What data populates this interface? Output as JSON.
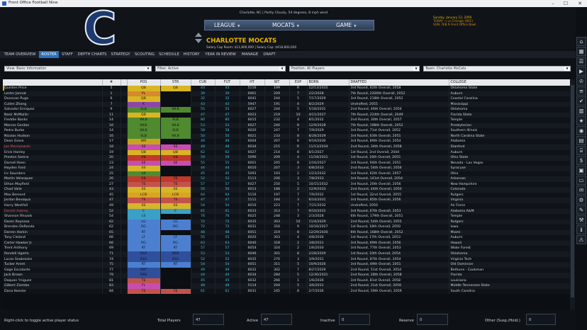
{
  "window": {
    "title": "Front Office Football Nine"
  },
  "header": {
    "team_letter": "C",
    "location": "Charlotte, NC  |  Partly Cloudy, 54 degrees, 8 mph wind",
    "nav": [
      {
        "label": "LEAGUE"
      },
      {
        "label": "MOCATS"
      },
      {
        "label": "GAME"
      }
    ],
    "team_name": "CHARLOTTE MOCATS",
    "cap": "Salary Cap Room: $11,800,000  |  Salary Cap: $418,800,000",
    "date_line": "Sunday, January 12, 2059",
    "today_line": "TODAY  →  vs Chicago (W/C)",
    "sun_line": "SUN, FEB 9   Front Office Bowl"
  },
  "tabs": [
    {
      "label": "TEAM OVERVIEW"
    },
    {
      "label": "ROSTER"
    },
    {
      "label": "STAFF"
    },
    {
      "label": "DEPTH CHARTS"
    },
    {
      "label": "STRATEGY"
    },
    {
      "label": "SCOUTING"
    },
    {
      "label": "SCHEDULE"
    },
    {
      "label": "HISTORY"
    },
    {
      "label": "YEAR IN REVIEW"
    },
    {
      "label": "MANAGE"
    },
    {
      "label": "DRAFT"
    }
  ],
  "filters": {
    "view": "View: Basic Information",
    "filter": "Filter: Active",
    "position": "Position: All Players",
    "team": "Team: Charlotte MoCats"
  },
  "table": {
    "columns": [
      "",
      "#",
      "",
      "POS",
      "STR",
      "CUR",
      "FUT",
      "HT",
      "WT",
      "EXP",
      "BORN",
      "DRAFTED",
      "COLLEGE"
    ],
    "rows": [
      {
        "name": "Quinten Price",
        "num": "5",
        "pos": "QB",
        "str": "QB",
        "cur": "43",
        "fut": "43",
        "ht": "5116",
        "wt": "199",
        "exp": "R",
        "born": "12/13/2035",
        "drafted": "3rd Round, 62th Overall, 2058",
        "college": "Oklahoma State"
      },
      {
        "name": "Lester Jannat",
        "num": "1",
        "pos": "PL",
        "str": "",
        "cur": "39",
        "fut": "39",
        "ht": "6061",
        "wt": "209",
        "exp": "7",
        "born": "2/2/2028",
        "drafted": "7th Round, 2200th Overall, 2052",
        "college": "Auburn"
      },
      {
        "name": "Donovan Puga",
        "num": "6",
        "pos": "QB",
        "str": "",
        "cur": "32",
        "fut": "32",
        "ht": "6041",
        "wt": "244",
        "exp": "5",
        "born": "7/17/2029",
        "drafted": "3rd Round, 218th Overall, 2052",
        "college": "Coastal Carolina"
      },
      {
        "name": "Cullen Zhang",
        "num": "7",
        "pos": "K",
        "str": "",
        "cur": "43",
        "fut": "43",
        "ht": "5947",
        "wt": "191",
        "exp": "4",
        "born": "8/2/2029",
        "drafted": "Undrafted, 2055",
        "college": "Mississippi"
      },
      {
        "name": "Salvador Enriquez",
        "num": "9",
        "pos": "SLB",
        "str": "WLB",
        "cur": "55",
        "fut": "55",
        "ht": "6027",
        "wt": "244",
        "exp": "5",
        "born": "5/18/2031",
        "drafted": "2nd Round, 46th Overall, 2054",
        "college": "Oklahoma"
      },
      {
        "name": "Nasir McMullin",
        "num": "11",
        "pos": "QB",
        "str": "",
        "cur": "47",
        "fut": "47",
        "ht": "6023",
        "wt": "219",
        "exp": "10",
        "born": "4/11/2027",
        "drafted": "7th Round, 224th Overall, 2049",
        "college": "Florida State"
      },
      {
        "name": "Freddie Banks",
        "num": "14",
        "pos": "WLB",
        "str": "SLB",
        "cur": "80",
        "fut": "80",
        "ht": "6015",
        "wt": "232",
        "exp": "4",
        "born": "8/1/2032",
        "drafted": "2nd Round, 30th Overall, 2057",
        "college": "Temple"
      },
      {
        "name": "Marcos Gordon",
        "num": "16",
        "pos": "MLB",
        "str": "WLB",
        "cur": "53",
        "fut": "53",
        "ht": "6027",
        "wt": "240",
        "exp": "8",
        "born": "12/9/2028",
        "drafted": "7th Round, 198th Overall, 2052",
        "college": "Presbyterian"
      },
      {
        "name": "Pedro Burke",
        "num": "14",
        "pos": "WLB",
        "str": "SLB",
        "cur": "58",
        "fut": "58",
        "ht": "6020",
        "wt": "247",
        "exp": "7",
        "born": "7/9/2029",
        "drafted": "3rd Round, 71st Overall, 2052",
        "college": "Southern Illinois"
      },
      {
        "name": "Nicolas Hudson",
        "num": "16",
        "pos": "SLB",
        "str": "WLB",
        "cur": "50",
        "fut": "50",
        "ht": "6021",
        "wt": "233",
        "exp": "8",
        "born": "8/28/2029",
        "drafted": "3rd Round, 63th Overall, 2051",
        "college": "North Carolina State"
      },
      {
        "name": "Deon Grose",
        "num": "17",
        "pos": "WR",
        "str": "",
        "cur": "49",
        "fut": "49",
        "ht": "6004",
        "wt": "207",
        "exp": "6",
        "born": "9/19/2030",
        "drafted": "3rd Round, 89th Overall, 2054",
        "college": "Alabama"
      },
      {
        "name": "Joe Maciejewski",
        "num": "18",
        "pos": "SE",
        "str": "SE",
        "cur": "48",
        "fut": "48",
        "ht": "6034",
        "wt": "215",
        "exp": "R",
        "born": "11/13/2034",
        "drafted": "2nd Round, 34th Overall, 2058",
        "college": "Stanford"
      },
      {
        "name": "Erick Hanley",
        "num": "19",
        "pos": "QB",
        "str": "QB",
        "cur": "62",
        "fut": "62",
        "ht": "6027",
        "wt": "214",
        "exp": "8",
        "born": "8/1/2027",
        "drafted": "1st Round, 2nd Overall, 2044",
        "college": "Auburn"
      },
      {
        "name": "Preston Samra",
        "num": "20",
        "pos": "RB",
        "str": "RB",
        "cur": "59",
        "fut": "59",
        "ht": "5090",
        "wt": "209",
        "exp": "4",
        "born": "11/18/2031",
        "drafted": "1st Round, 16th Overall, 2055",
        "college": "Ohio State"
      },
      {
        "name": "Darnell Keen",
        "num": "23",
        "pos": "SE",
        "str": "SE",
        "cur": "55",
        "fut": "55",
        "ht": "6001",
        "wt": "205",
        "exp": "8",
        "born": "2/16/2027",
        "drafted": "3rd Round, 94th Overall, 2051",
        "college": "Nevada - Las Vegas"
      },
      {
        "name": "Hayden Ford",
        "num": "24",
        "pos": "SS",
        "str": "",
        "cur": "44",
        "fut": "44",
        "ht": "6010",
        "wt": "207",
        "exp": "3",
        "born": "6/8/2033",
        "drafted": "2nd Round, 54th Overall, 2056",
        "college": "Syracuse"
      },
      {
        "name": "Irv Saunders",
        "num": "25",
        "pos": "LB",
        "str": "",
        "cur": "45",
        "fut": "45",
        "ht": "5093",
        "wt": "193",
        "exp": "2",
        "born": "1/23/2032",
        "drafted": "3rd Round, 62th Overall, 2057",
        "college": "Ohio"
      },
      {
        "name": "Martin Velasquez",
        "num": "26",
        "pos": "RB",
        "str": "FB",
        "cur": "52",
        "fut": "52",
        "ht": "5113",
        "wt": "206",
        "exp": "3",
        "born": "7/8/2033",
        "drafted": "3rd Round, 141st Overall, 2054",
        "college": "Arkansas"
      },
      {
        "name": "Ethan Mayfield",
        "num": "27",
        "pos": "TE",
        "str": "TE",
        "cur": "57",
        "fut": "57",
        "ht": "6027",
        "wt": "250",
        "exp": "5",
        "born": "10/15/2032",
        "drafted": "3rd Round, 20th Overall, 2056",
        "college": "New Hampshire"
      },
      {
        "name": "Chad Valle",
        "num": "43",
        "pos": "SS",
        "str": "SS",
        "cur": "56",
        "fut": "56",
        "ht": "6013",
        "wt": "188",
        "exp": "2",
        "born": "12/9/2033",
        "drafted": "2nd Round, 44th Overall, 2050",
        "college": "Colorado"
      },
      {
        "name": "Max Bement",
        "num": "45",
        "pos": "LCB",
        "str": "LCB",
        "cur": "64",
        "fut": "64",
        "ht": "5116",
        "wt": "197",
        "exp": "7",
        "born": "7/9/2032",
        "drafted": "1st Round, 32nd Overall, 2055",
        "college": "Rutgers"
      },
      {
        "name": "Jordan Bevaqua",
        "num": "47",
        "pos": "TE",
        "str": "TE",
        "cur": "47",
        "fut": "47",
        "ht": "5111",
        "wt": "184",
        "exp": "3",
        "born": "6/14/2031",
        "drafted": "3rd Round, 85th Overall, 2056",
        "college": "Virginia"
      },
      {
        "name": "Harry Westfall",
        "num": "49",
        "pos": "SS",
        "str": "SS",
        "cur": "54",
        "fut": "54",
        "ht": "6010",
        "wt": "223",
        "exp": "7",
        "born": "7/21/2032",
        "drafted": "Undrafted, 2050",
        "college": "Air Force"
      },
      {
        "name": "Darrell Aubrey",
        "num": "52",
        "pos": "C",
        "str": "C",
        "cur": "61",
        "fut": "61",
        "ht": "6033",
        "wt": "313",
        "exp": "7",
        "born": "9/10/2031",
        "drafted": "3rd Round, 67th Overall, 2053",
        "college": "Alabama A&M"
      },
      {
        "name": "Shannon Rhoads",
        "num": "54",
        "pos": "LS",
        "str": "",
        "cur": "76",
        "fut": "76",
        "ht": "6025",
        "wt": "248",
        "exp": "3",
        "born": "2/3/2028",
        "drafted": "6th Round, 179th Overall, 2051",
        "college": "Temple"
      },
      {
        "name": "Daren Reynoso",
        "num": "62",
        "pos": "LG",
        "str": "LG",
        "cur": "72",
        "fut": "72",
        "ht": "6035",
        "wt": "303",
        "exp": "10",
        "born": "11/4/2029",
        "drafted": "2nd Round, 54th Overall, 2055",
        "college": "Rutgers"
      },
      {
        "name": "Brenden DeRondo",
        "num": "62",
        "pos": "RG",
        "str": "RG",
        "cur": "72",
        "fut": "72",
        "ht": "6031",
        "wt": "316",
        "exp": "9",
        "born": "10/16/2027",
        "drafted": "1st Round, 18th Overall, 2050",
        "college": "Iowa"
      },
      {
        "name": "Darren Harkin",
        "num": "65",
        "pos": "RT",
        "str": "",
        "cur": "48",
        "fut": "48",
        "ht": "6051",
        "wt": "319",
        "exp": "8",
        "born": "12/29/2030",
        "drafted": "6th Round, 168th Overall, 2052",
        "college": "Miami"
      },
      {
        "name": "Tony Cleland",
        "num": "66",
        "pos": "LT",
        "str": "LT",
        "cur": "55",
        "fut": "55",
        "ht": "6020",
        "wt": "303",
        "exp": "4",
        "born": "4/8/2030",
        "drafted": "1st Round, 17th Overall, 2053",
        "college": "Auburn"
      },
      {
        "name": "Carter Hawker Jr.",
        "num": "66",
        "pos": "RG",
        "str": "RG",
        "cur": "63",
        "fut": "63",
        "ht": "6040",
        "wt": "318",
        "exp": "2",
        "born": "3/8/2031",
        "drafted": "3rd Round, 69th Overall, 2056",
        "college": "Hawaii"
      },
      {
        "name": "Trent Anthony",
        "num": "69",
        "pos": "RT",
        "str": "RT",
        "cur": "57",
        "fut": "57",
        "ht": "6054",
        "wt": "324",
        "exp": "2",
        "born": "1/6/2030",
        "drafted": "3rd Round, 77th Overall, 2053",
        "college": "Wake Forest"
      },
      {
        "name": "Rondell Ugarte",
        "num": "71",
        "pos": "DLE",
        "str": "DRE",
        "cur": "53",
        "fut": "53",
        "ht": "6046",
        "wt": "301",
        "exp": "8",
        "born": "2/28/2029",
        "drafted": "1st Round, 10th Overall, 2054",
        "college": "Oklahoma"
      },
      {
        "name": "Lucas Seabrooks",
        "num": "74",
        "pos": "DLE",
        "str": "DLE",
        "cur": "52",
        "fut": "52",
        "ht": "6035",
        "wt": "270",
        "exp": "3",
        "born": "3/9/2031",
        "drafted": "3rd Round, 87th Overall, 2054",
        "college": "Virginia Tech"
      },
      {
        "name": "Tucker Arent",
        "num": "75",
        "pos": "RT",
        "str": "RT",
        "cur": "54",
        "fut": "54",
        "ht": "6051",
        "wt": "311",
        "exp": "5",
        "born": "10/9/2026",
        "drafted": "3rd Round, 49th Overall, 2051",
        "college": "Old Dominion"
      },
      {
        "name": "Gage Escalante",
        "num": "77",
        "pos": "DRT",
        "str": "",
        "cur": "49",
        "fut": "49",
        "ht": "6032",
        "wt": "302",
        "exp": "7",
        "born": "8/27/2029",
        "drafted": "2nd Round, 51st Overall, 2054",
        "college": "Bethune - Cookman"
      },
      {
        "name": "Jack Brown",
        "num": "79",
        "pos": "DRE",
        "str": "",
        "cur": "44",
        "fut": "44",
        "ht": "6034",
        "wt": "284",
        "exp": "5",
        "born": "12/30/2031",
        "drafted": "2nd Round, 28th Overall, 2058",
        "college": "Florida"
      },
      {
        "name": "Daquan Yniguez",
        "num": "81",
        "pos": "TE",
        "str": "",
        "cur": "45",
        "fut": "45",
        "ht": "6032",
        "wt": "266",
        "exp": "1",
        "born": "1/6/2036",
        "drafted": "3rd Round, 81st Overall, 2058",
        "college": "Louisiana"
      },
      {
        "name": "Gilbert Ziemba",
        "num": "83",
        "pos": "FL",
        "str": "",
        "cur": "48",
        "fut": "48",
        "ht": "5114",
        "wt": "204",
        "exp": "5",
        "born": "3/6/2031",
        "drafted": "2nd Round, 31st Overall, 2056",
        "college": "Middle Tennessee State"
      },
      {
        "name": "Dana Keesler",
        "num": "84",
        "pos": "TE",
        "str": "TE",
        "cur": "61",
        "fut": "61",
        "ht": "6031",
        "wt": "245",
        "exp": "8",
        "born": "2/7/2036",
        "drafted": "2nd Round, 59th Overall, 2059",
        "college": "South Carolina"
      }
    ]
  },
  "footer": {
    "hint": "Right-click to toggle active player status",
    "total_label": "Total Players",
    "total": "47",
    "active_label": "Active",
    "active": "47",
    "inactive_label": "Inactive",
    "inactive": "0",
    "reserve_label": "Reserve",
    "reserve": "0",
    "other_label": "Other (Susp./Hold.)",
    "other": "0"
  },
  "colors": {
    "accent": "#2e6fb8",
    "team_gold": "#e6b400",
    "team_navy": "#1d3a70"
  },
  "sidebar_icons": [
    "home-icon",
    "calendar-icon",
    "clipboard-icon",
    "game-icon",
    "trophy-icon",
    "list-icon",
    "checkmark-icon",
    "stats-icon",
    "award-icon",
    "eye-icon",
    "grid-icon",
    "building-icon",
    "money-icon",
    "chart-icon",
    "monitor-icon",
    "chat-icon",
    "gear-icon",
    "mail-icon",
    "tools-icon",
    "info-icon",
    "alert-icon"
  ]
}
